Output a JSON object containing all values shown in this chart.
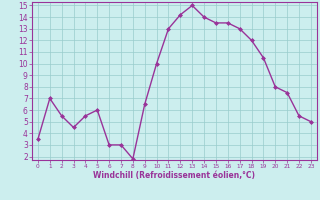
{
  "x": [
    0,
    1,
    2,
    3,
    4,
    5,
    6,
    7,
    8,
    9,
    10,
    11,
    12,
    13,
    14,
    15,
    16,
    17,
    18,
    19,
    20,
    21,
    22,
    23
  ],
  "y": [
    3.5,
    7.0,
    5.5,
    4.5,
    5.5,
    6.0,
    3.0,
    3.0,
    1.8,
    6.5,
    10.0,
    13.0,
    14.2,
    15.0,
    14.0,
    13.5,
    13.5,
    13.0,
    12.0,
    10.5,
    8.0,
    7.5,
    5.5,
    5.0
  ],
  "line_color": "#993399",
  "marker": "D",
  "marker_size": 2.0,
  "bg_color": "#cceeee",
  "grid_color": "#99cccc",
  "xlabel": "Windchill (Refroidissement éolien,°C)",
  "ylim_min": 2,
  "ylim_max": 15,
  "xlim_min": -0.5,
  "xlim_max": 23.5,
  "yticks": [
    2,
    3,
    4,
    5,
    6,
    7,
    8,
    9,
    10,
    11,
    12,
    13,
    14,
    15
  ],
  "xticks": [
    0,
    1,
    2,
    3,
    4,
    5,
    6,
    7,
    8,
    9,
    10,
    11,
    12,
    13,
    14,
    15,
    16,
    17,
    18,
    19,
    20,
    21,
    22,
    23
  ],
  "tick_color": "#993399",
  "font_color": "#993399",
  "spine_color": "#993399",
  "xlabel_fontsize": 5.5,
  "tick_fontsize_x": 4.2,
  "tick_fontsize_y": 5.5,
  "linewidth": 1.0
}
